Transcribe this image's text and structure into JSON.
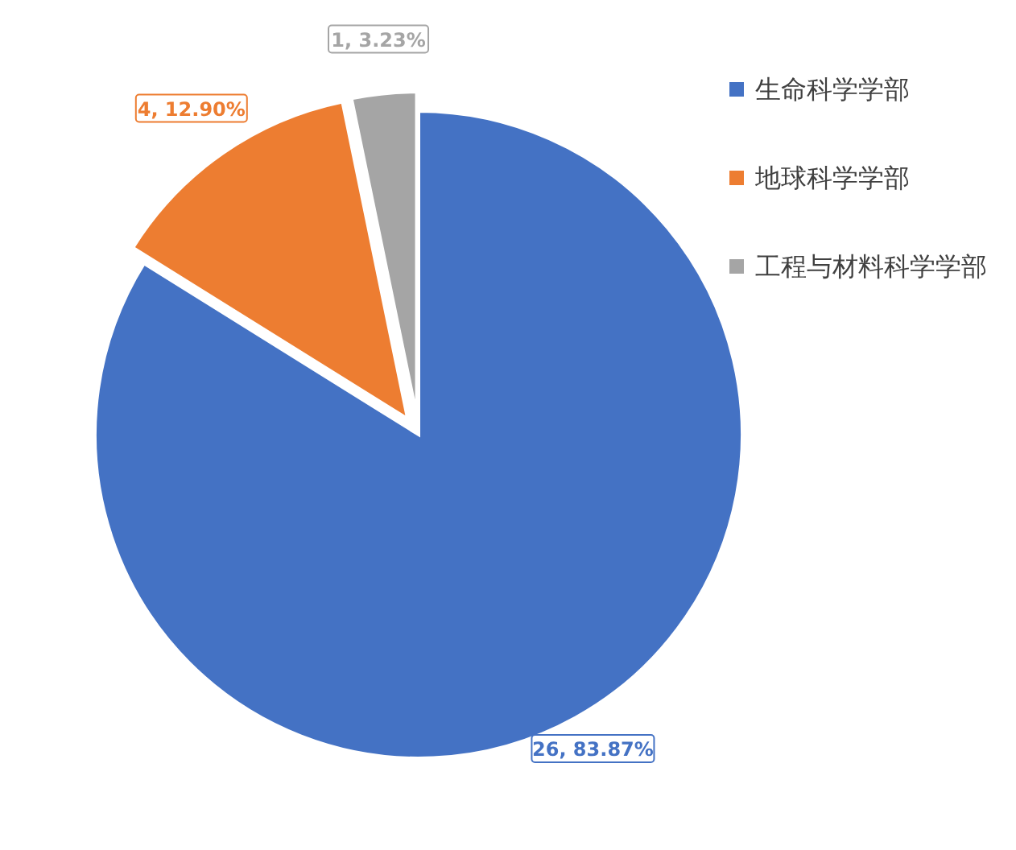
{
  "chart_data": {
    "type": "pie",
    "categories": [
      "生命科学学部",
      "地球科学学部",
      "工程与材料科学学部"
    ],
    "values": [
      26,
      4,
      1
    ],
    "colors": [
      "#4472c4",
      "#ed7d31",
      "#a5a5a5"
    ],
    "value_labels": [
      "26, 83.87%",
      "4, 12.90%",
      "1, 3.23%"
    ],
    "legend": "top right"
  }
}
